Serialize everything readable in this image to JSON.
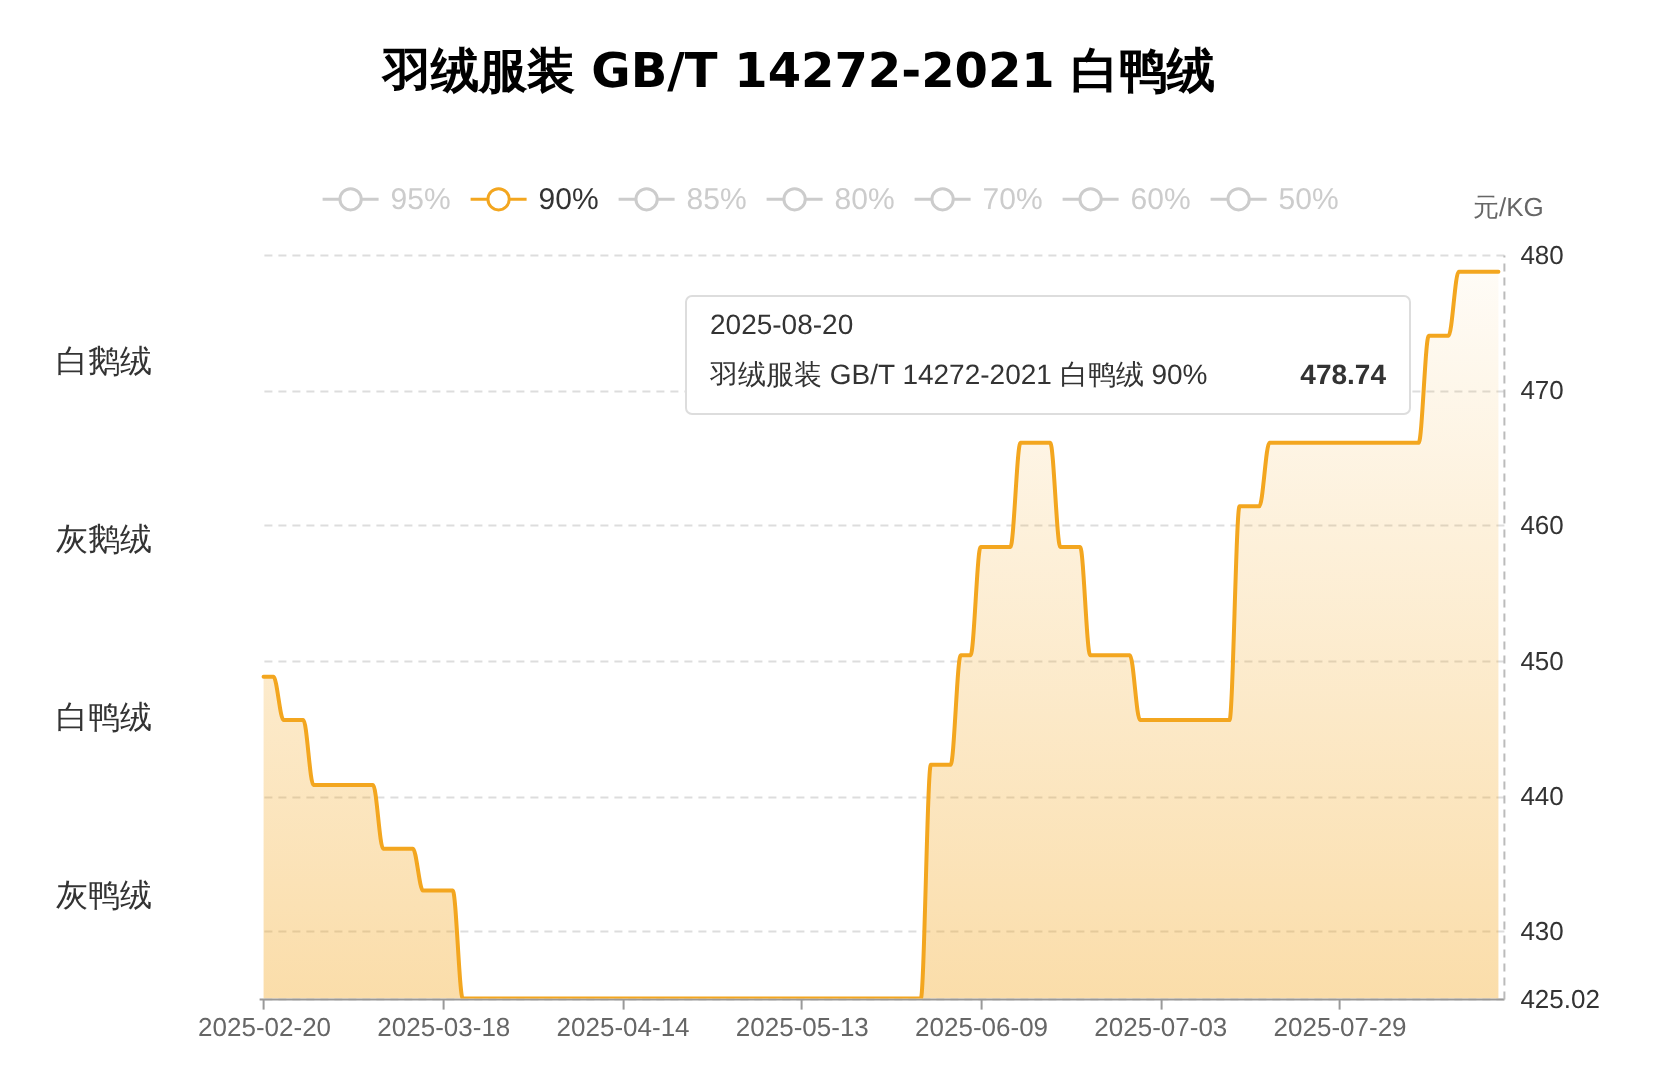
{
  "chart_data": {
    "type": "area",
    "title": "羽绒服装 GB/T 14272-2021 白鸭绒",
    "ylabel": "元/KG",
    "categories": [
      "2025-02-20",
      null,
      null,
      null,
      null,
      null,
      null,
      null,
      null,
      null,
      null,
      null,
      null,
      null,
      null,
      null,
      null,
      null,
      "2025-03-18",
      null,
      null,
      null,
      null,
      null,
      null,
      null,
      null,
      null,
      null,
      null,
      null,
      null,
      null,
      null,
      null,
      null,
      "2025-04-14",
      null,
      null,
      null,
      null,
      null,
      null,
      null,
      null,
      null,
      null,
      null,
      null,
      null,
      null,
      null,
      null,
      null,
      "2025-05-13",
      null,
      null,
      null,
      null,
      null,
      null,
      null,
      null,
      null,
      null,
      null,
      null,
      null,
      null,
      null,
      null,
      null,
      "2025-06-09",
      null,
      null,
      null,
      null,
      null,
      null,
      null,
      null,
      null,
      null,
      null,
      null,
      null,
      null,
      null,
      null,
      null,
      "2025-07-03",
      null,
      null,
      null,
      null,
      null,
      null,
      null,
      null,
      null,
      null,
      null,
      null,
      null,
      null,
      null,
      null,
      null,
      "2025-07-29",
      null,
      null,
      null,
      null,
      null,
      null,
      null,
      null,
      null,
      null,
      null,
      null,
      null,
      null,
      null,
      null
    ],
    "series": [
      {
        "name": "95%",
        "color": "#cccccc",
        "values": [
          null,
          null,
          null,
          null,
          null,
          null,
          null,
          null,
          null,
          null,
          null,
          null,
          null,
          null,
          null,
          null,
          null,
          null,
          null,
          null,
          null,
          null,
          null,
          null,
          null,
          null,
          null,
          null,
          null,
          null,
          null,
          null,
          null,
          null,
          null,
          null,
          null,
          null,
          null,
          null,
          null,
          null,
          null,
          null,
          null,
          null,
          null,
          null,
          null,
          null,
          null,
          null,
          null,
          null,
          null,
          null,
          null,
          null,
          null,
          null,
          null,
          null,
          null,
          null,
          null,
          null,
          null,
          null,
          null,
          null,
          null,
          null,
          null,
          null,
          null,
          null,
          null,
          null,
          null,
          null,
          null,
          null,
          null,
          null,
          null,
          null,
          null,
          null,
          null,
          null,
          null,
          null,
          null,
          null,
          null,
          null,
          null,
          null,
          null,
          null,
          null,
          null,
          null,
          null,
          null,
          null,
          null,
          null,
          null,
          null,
          null,
          null,
          null,
          null,
          null,
          null,
          null,
          null,
          null,
          null,
          null,
          null,
          null,
          null,
          null
        ]
      },
      {
        "name": "90%",
        "color": "#f3a61f",
        "values": [
          448.8,
          448.8,
          445.6,
          445.6,
          445.6,
          440.8,
          440.8,
          440.8,
          440.8,
          440.8,
          440.8,
          440.8,
          436.1,
          436.1,
          436.1,
          436.1,
          433,
          433,
          433,
          433,
          425.02,
          425.02,
          425.02,
          425.02,
          425.02,
          425.02,
          425.02,
          425.02,
          425.02,
          425.02,
          425.02,
          425.02,
          425.02,
          425.02,
          425.02,
          425.02,
          425.02,
          425.02,
          425.02,
          425.02,
          425.02,
          425.02,
          425.02,
          425.02,
          425.02,
          425.02,
          425.02,
          425.02,
          425.02,
          425.02,
          425.02,
          425.02,
          425.02,
          425.02,
          425.02,
          425.02,
          425.02,
          425.02,
          425.02,
          425.02,
          425.02,
          425.02,
          425.02,
          425.02,
          425.02,
          425.02,
          425.02,
          442.3,
          442.3,
          442.3,
          450.4,
          450.4,
          458.4,
          458.4,
          458.4,
          458.4,
          466.1,
          466.1,
          466.1,
          466.1,
          458.4,
          458.4,
          458.4,
          450.4,
          450.4,
          450.4,
          450.4,
          450.4,
          445.6,
          445.6,
          445.6,
          445.6,
          445.6,
          445.6,
          445.6,
          445.6,
          445.6,
          445.6,
          461.4,
          461.4,
          461.4,
          466.1,
          466.1,
          466.1,
          466.1,
          466.1,
          466.1,
          466.1,
          466.1,
          466.1,
          466.1,
          466.1,
          466.1,
          466.1,
          466.1,
          466.1,
          466.1,
          474,
          474,
          474,
          478.74,
          478.74,
          478.74,
          478.74,
          478.74
        ]
      },
      {
        "name": "85%",
        "color": "#cccccc",
        "values": [
          null,
          null,
          null,
          null,
          null,
          null,
          null,
          null,
          null,
          null,
          null,
          null,
          null,
          null,
          null,
          null,
          null,
          null,
          null,
          null,
          null,
          null,
          null,
          null,
          null,
          null,
          null,
          null,
          null,
          null,
          null,
          null,
          null,
          null,
          null,
          null,
          null,
          null,
          null,
          null,
          null,
          null,
          null,
          null,
          null,
          null,
          null,
          null,
          null,
          null,
          null,
          null,
          null,
          null,
          null,
          null,
          null,
          null,
          null,
          null,
          null,
          null,
          null,
          null,
          null,
          null,
          null,
          null,
          null,
          null,
          null,
          null,
          null,
          null,
          null,
          null,
          null,
          null,
          null,
          null,
          null,
          null,
          null,
          null,
          null,
          null,
          null,
          null,
          null,
          null,
          null,
          null,
          null,
          null,
          null,
          null,
          null,
          null,
          null,
          null,
          null,
          null,
          null,
          null,
          null,
          null,
          null,
          null,
          null,
          null,
          null,
          null,
          null,
          null,
          null,
          null,
          null,
          null,
          null,
          null,
          null,
          null,
          null,
          null,
          null
        ]
      },
      {
        "name": "80%",
        "color": "#cccccc",
        "values": [
          null,
          null,
          null,
          null,
          null,
          null,
          null,
          null,
          null,
          null,
          null,
          null,
          null,
          null,
          null,
          null,
          null,
          null,
          null,
          null,
          null,
          null,
          null,
          null,
          null,
          null,
          null,
          null,
          null,
          null,
          null,
          null,
          null,
          null,
          null,
          null,
          null,
          null,
          null,
          null,
          null,
          null,
          null,
          null,
          null,
          null,
          null,
          null,
          null,
          null,
          null,
          null,
          null,
          null,
          null,
          null,
          null,
          null,
          null,
          null,
          null,
          null,
          null,
          null,
          null,
          null,
          null,
          null,
          null,
          null,
          null,
          null,
          null,
          null,
          null,
          null,
          null,
          null,
          null,
          null,
          null,
          null,
          null,
          null,
          null,
          null,
          null,
          null,
          null,
          null,
          null,
          null,
          null,
          null,
          null,
          null,
          null,
          null,
          null,
          null,
          null,
          null,
          null,
          null,
          null,
          null,
          null,
          null,
          null,
          null,
          null,
          null,
          null,
          null,
          null,
          null,
          null,
          null,
          null,
          null,
          null,
          null,
          null,
          null,
          null
        ]
      },
      {
        "name": "70%",
        "color": "#cccccc",
        "values": [
          null,
          null,
          null,
          null,
          null,
          null,
          null,
          null,
          null,
          null,
          null,
          null,
          null,
          null,
          null,
          null,
          null,
          null,
          null,
          null,
          null,
          null,
          null,
          null,
          null,
          null,
          null,
          null,
          null,
          null,
          null,
          null,
          null,
          null,
          null,
          null,
          null,
          null,
          null,
          null,
          null,
          null,
          null,
          null,
          null,
          null,
          null,
          null,
          null,
          null,
          null,
          null,
          null,
          null,
          null,
          null,
          null,
          null,
          null,
          null,
          null,
          null,
          null,
          null,
          null,
          null,
          null,
          null,
          null,
          null,
          null,
          null,
          null,
          null,
          null,
          null,
          null,
          null,
          null,
          null,
          null,
          null,
          null,
          null,
          null,
          null,
          null,
          null,
          null,
          null,
          null,
          null,
          null,
          null,
          null,
          null,
          null,
          null,
          null,
          null,
          null,
          null,
          null,
          null,
          null,
          null,
          null,
          null,
          null,
          null,
          null,
          null,
          null,
          null,
          null,
          null,
          null,
          null,
          null,
          null,
          null,
          null,
          null,
          null,
          null
        ]
      },
      {
        "name": "60%",
        "color": "#cccccc",
        "values": [
          null,
          null,
          null,
          null,
          null,
          null,
          null,
          null,
          null,
          null,
          null,
          null,
          null,
          null,
          null,
          null,
          null,
          null,
          null,
          null,
          null,
          null,
          null,
          null,
          null,
          null,
          null,
          null,
          null,
          null,
          null,
          null,
          null,
          null,
          null,
          null,
          null,
          null,
          null,
          null,
          null,
          null,
          null,
          null,
          null,
          null,
          null,
          null,
          null,
          null,
          null,
          null,
          null,
          null,
          null,
          null,
          null,
          null,
          null,
          null,
          null,
          null,
          null,
          null,
          null,
          null,
          null,
          null,
          null,
          null,
          null,
          null,
          null,
          null,
          null,
          null,
          null,
          null,
          null,
          null,
          null,
          null,
          null,
          null,
          null,
          null,
          null,
          null,
          null,
          null,
          null,
          null,
          null,
          null,
          null,
          null,
          null,
          null,
          null,
          null,
          null,
          null,
          null,
          null,
          null,
          null,
          null,
          null,
          null,
          null,
          null,
          null,
          null,
          null,
          null,
          null,
          null,
          null,
          null,
          null,
          null,
          null,
          null,
          null,
          null
        ]
      },
      {
        "name": "50%",
        "color": "#cccccc",
        "values": [
          null,
          null,
          null,
          null,
          null,
          null,
          null,
          null,
          null,
          null,
          null,
          null,
          null,
          null,
          null,
          null,
          null,
          null,
          null,
          null,
          null,
          null,
          null,
          null,
          null,
          null,
          null,
          null,
          null,
          null,
          null,
          null,
          null,
          null,
          null,
          null,
          null,
          null,
          null,
          null,
          null,
          null,
          null,
          null,
          null,
          null,
          null,
          null,
          null,
          null,
          null,
          null,
          null,
          null,
          null,
          null,
          null,
          null,
          null,
          null,
          null,
          null,
          null,
          null,
          null,
          null,
          null,
          null,
          null,
          null,
          null,
          null,
          null,
          null,
          null,
          null,
          null,
          null,
          null,
          null,
          null,
          null,
          null,
          null,
          null,
          null,
          null,
          null,
          null,
          null,
          null,
          null,
          null,
          null,
          null,
          null,
          null,
          null,
          null,
          null,
          null,
          null,
          null,
          null,
          null,
          null,
          null,
          null,
          null,
          null,
          null,
          null,
          null,
          null,
          null,
          null,
          null,
          null,
          null,
          null,
          null,
          null,
          null,
          null,
          null
        ]
      }
    ],
    "ylim": [
      425.02,
      480
    ],
    "yticks": [
      425.02,
      430,
      440,
      450,
      460,
      470,
      480
    ],
    "grid": "y",
    "legend": "top",
    "annotations": [
      "白鹅绒",
      "灰鹅绒",
      "白鸭绒",
      "灰鸭绒",
      "2025-08-20",
      "羽绒服装 GB/T 14272-2021 白鸭绒 90%",
      "478.74"
    ]
  }
}
